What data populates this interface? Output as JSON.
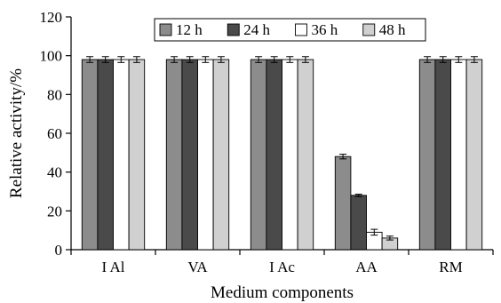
{
  "chart_data": {
    "type": "bar",
    "title": "",
    "xlabel": "Medium components",
    "ylabel": "Relative activity/%",
    "ylim": [
      0,
      120
    ],
    "yticks": [
      0,
      20,
      40,
      60,
      80,
      100,
      120
    ],
    "grid": false,
    "legend_position": "top",
    "categories": [
      "I Al",
      "VA",
      "I Ac",
      "AA",
      "RM"
    ],
    "series": [
      {
        "name": "12 h",
        "color": "#8c8c8c",
        "values": [
          98,
          98,
          98,
          48,
          98
        ],
        "errors": [
          1.5,
          1.5,
          1.5,
          1.2,
          1.5
        ]
      },
      {
        "name": "24 h",
        "color": "#4a4a4a",
        "values": [
          98,
          98,
          98,
          28,
          98
        ],
        "errors": [
          1.5,
          1.5,
          1.5,
          0.6,
          1.5
        ]
      },
      {
        "name": "36 h",
        "color": "#ffffff",
        "values": [
          98,
          98,
          98,
          9,
          98
        ],
        "errors": [
          1.5,
          1.5,
          1.5,
          1.5,
          1.5
        ]
      },
      {
        "name": "48 h",
        "color": "#d0d0d0",
        "values": [
          98,
          98,
          98,
          6,
          98
        ],
        "errors": [
          1.5,
          1.5,
          1.5,
          1.0,
          1.5
        ]
      }
    ]
  }
}
